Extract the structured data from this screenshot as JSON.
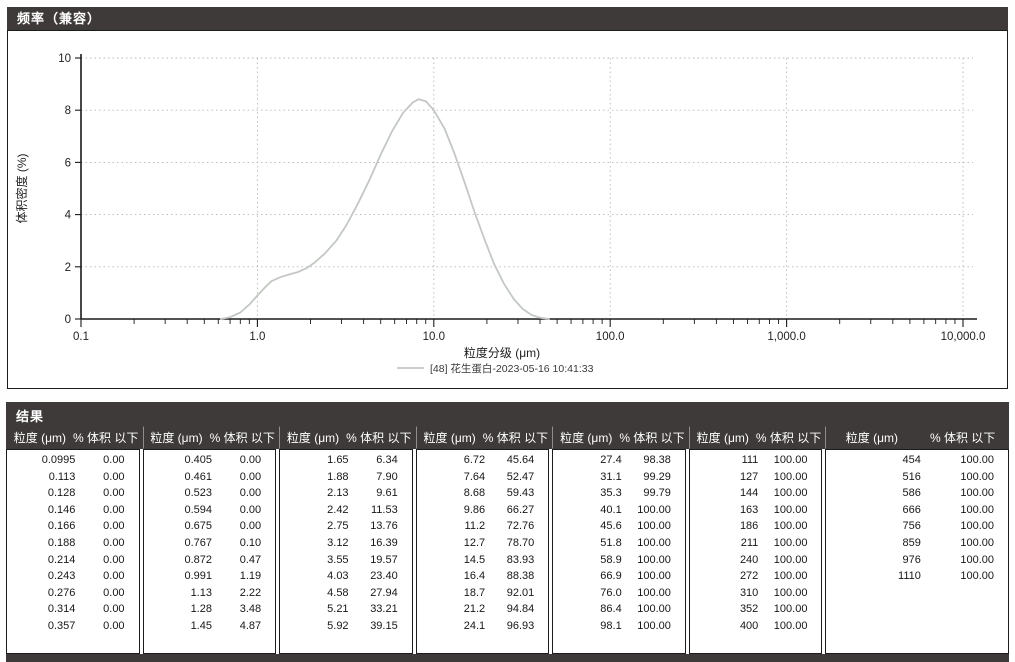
{
  "colors": {
    "bar_bg": "#3e3a39",
    "bar_text": "#ffffff",
    "border": "#1c1c1c",
    "grid": "#b7b7b7",
    "curve": "#c3c8c3",
    "text": "#1f1f1f"
  },
  "chart_panel": {
    "title": "频率（兼容）"
  },
  "chart_data": {
    "type": "line",
    "title": "频率（兼容）",
    "xlabel": "粒度分级 (μm)",
    "ylabel": "体积密度 (%)",
    "x_scale": "log",
    "xlim": [
      0.1,
      10000
    ],
    "ylim": [
      0,
      10
    ],
    "x_tick_values": [
      0.1,
      1,
      10,
      100,
      1000,
      10000
    ],
    "x_tick_labels": [
      "0.1",
      "1.0",
      "10.0",
      "100.0",
      "1,000.0",
      "10,000.0"
    ],
    "y_ticks": [
      0,
      2,
      4,
      6,
      8,
      10
    ],
    "grid": true,
    "legend_position": "bottom",
    "series": [
      {
        "name": "[48] 花生蛋白-2023-05-16 10:41:33",
        "color": "#c3c8c3",
        "x": [
          0.62,
          0.7,
          0.8,
          0.9,
          1.0,
          1.1,
          1.2,
          1.35,
          1.5,
          1.7,
          1.9,
          2.1,
          2.4,
          2.8,
          3.2,
          3.7,
          4.3,
          5.0,
          5.8,
          6.7,
          7.6,
          8.2,
          9.0,
          10.0,
          11.5,
          13.0,
          15.0,
          17.0,
          19.5,
          22.0,
          25.0,
          28.5,
          32.0,
          36.0,
          40.0,
          45.0
        ],
        "y": [
          0,
          0.07,
          0.25,
          0.55,
          0.9,
          1.2,
          1.45,
          1.6,
          1.7,
          1.8,
          1.95,
          2.15,
          2.5,
          3.0,
          3.6,
          4.4,
          5.3,
          6.3,
          7.2,
          7.9,
          8.3,
          8.42,
          8.35,
          8.0,
          7.3,
          6.4,
          5.2,
          4.1,
          3.0,
          2.1,
          1.35,
          0.75,
          0.38,
          0.15,
          0.05,
          0.0
        ]
      }
    ]
  },
  "results": {
    "title": "结果",
    "size_header": "粒度 (μm)",
    "pct_header": "% 体积 以下",
    "groups": [
      {
        "rows": [
          [
            "0.0995",
            "0.00"
          ],
          [
            "0.113",
            "0.00"
          ],
          [
            "0.128",
            "0.00"
          ],
          [
            "0.146",
            "0.00"
          ],
          [
            "0.166",
            "0.00"
          ],
          [
            "0.188",
            "0.00"
          ],
          [
            "0.214",
            "0.00"
          ],
          [
            "0.243",
            "0.00"
          ],
          [
            "0.276",
            "0.00"
          ],
          [
            "0.314",
            "0.00"
          ],
          [
            "0.357",
            "0.00"
          ]
        ]
      },
      {
        "rows": [
          [
            "0.405",
            "0.00"
          ],
          [
            "0.461",
            "0.00"
          ],
          [
            "0.523",
            "0.00"
          ],
          [
            "0.594",
            "0.00"
          ],
          [
            "0.675",
            "0.00"
          ],
          [
            "0.767",
            "0.10"
          ],
          [
            "0.872",
            "0.47"
          ],
          [
            "0.991",
            "1.19"
          ],
          [
            "1.13",
            "2.22"
          ],
          [
            "1.28",
            "3.48"
          ],
          [
            "1.45",
            "4.87"
          ]
        ]
      },
      {
        "rows": [
          [
            "1.65",
            "6.34"
          ],
          [
            "1.88",
            "7.90"
          ],
          [
            "2.13",
            "9.61"
          ],
          [
            "2.42",
            "11.53"
          ],
          [
            "2.75",
            "13.76"
          ],
          [
            "3.12",
            "16.39"
          ],
          [
            "3.55",
            "19.57"
          ],
          [
            "4.03",
            "23.40"
          ],
          [
            "4.58",
            "27.94"
          ],
          [
            "5.21",
            "33.21"
          ],
          [
            "5.92",
            "39.15"
          ]
        ]
      },
      {
        "rows": [
          [
            "6.72",
            "45.64"
          ],
          [
            "7.64",
            "52.47"
          ],
          [
            "8.68",
            "59.43"
          ],
          [
            "9.86",
            "66.27"
          ],
          [
            "11.2",
            "72.76"
          ],
          [
            "12.7",
            "78.70"
          ],
          [
            "14.5",
            "83.93"
          ],
          [
            "16.4",
            "88.38"
          ],
          [
            "18.7",
            "92.01"
          ],
          [
            "21.2",
            "94.84"
          ],
          [
            "24.1",
            "96.93"
          ]
        ]
      },
      {
        "rows": [
          [
            "27.4",
            "98.38"
          ],
          [
            "31.1",
            "99.29"
          ],
          [
            "35.3",
            "99.79"
          ],
          [
            "40.1",
            "100.00"
          ],
          [
            "45.6",
            "100.00"
          ],
          [
            "51.8",
            "100.00"
          ],
          [
            "58.9",
            "100.00"
          ],
          [
            "66.9",
            "100.00"
          ],
          [
            "76.0",
            "100.00"
          ],
          [
            "86.4",
            "100.00"
          ],
          [
            "98.1",
            "100.00"
          ]
        ]
      },
      {
        "rows": [
          [
            "111",
            "100.00"
          ],
          [
            "127",
            "100.00"
          ],
          [
            "144",
            "100.00"
          ],
          [
            "163",
            "100.00"
          ],
          [
            "186",
            "100.00"
          ],
          [
            "211",
            "100.00"
          ],
          [
            "240",
            "100.00"
          ],
          [
            "272",
            "100.00"
          ],
          [
            "310",
            "100.00"
          ],
          [
            "352",
            "100.00"
          ],
          [
            "400",
            "100.00"
          ]
        ]
      },
      {
        "rows": [
          [
            "454",
            "100.00"
          ],
          [
            "516",
            "100.00"
          ],
          [
            "586",
            "100.00"
          ],
          [
            "666",
            "100.00"
          ],
          [
            "756",
            "100.00"
          ],
          [
            "859",
            "100.00"
          ],
          [
            "976",
            "100.00"
          ],
          [
            "1110",
            "100.00"
          ]
        ]
      }
    ]
  }
}
